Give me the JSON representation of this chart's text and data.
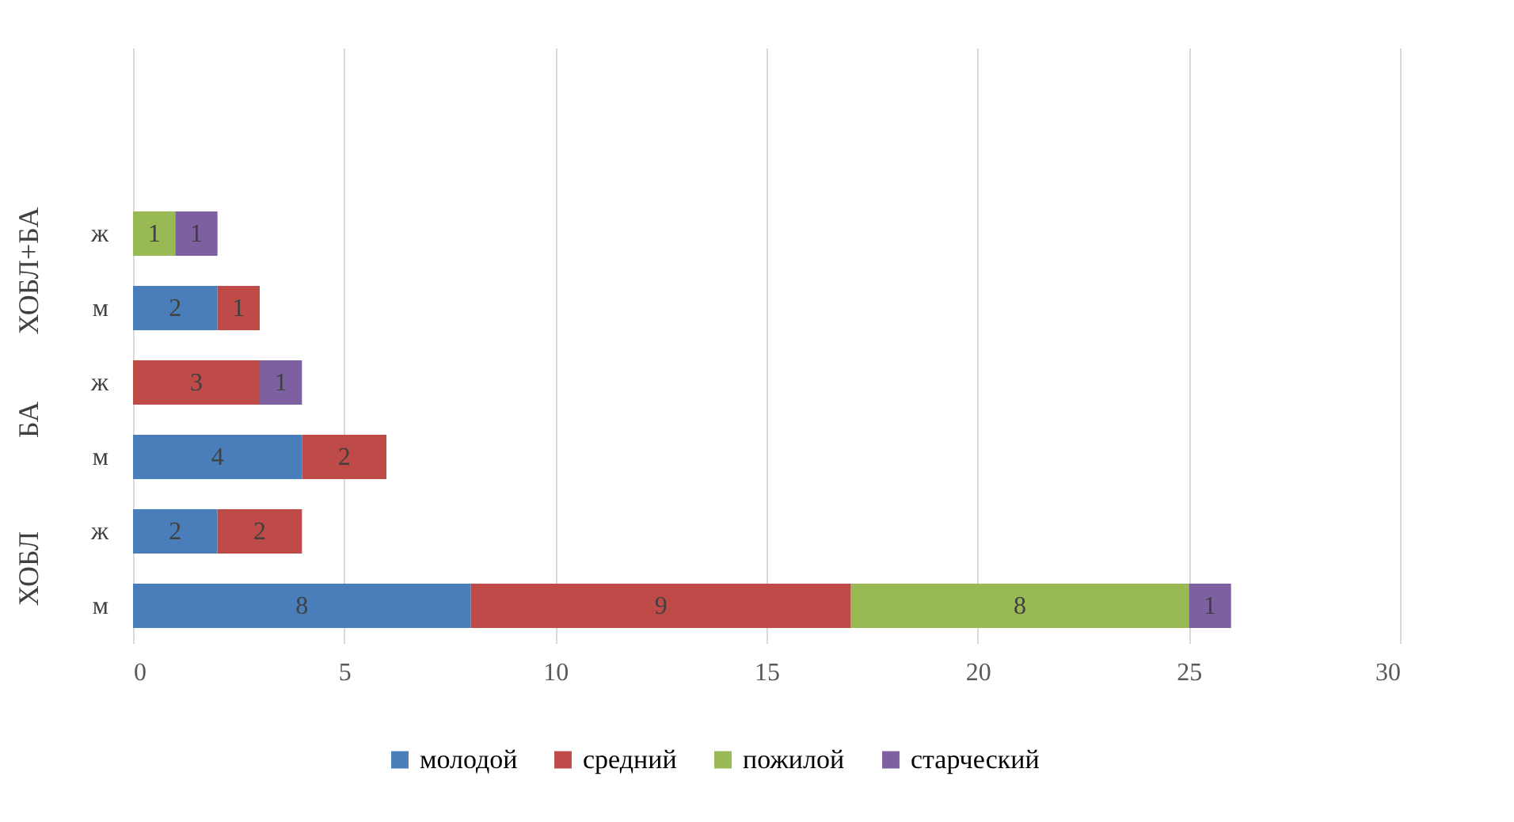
{
  "chart_data": {
    "type": "bar",
    "orientation": "horizontal",
    "stacked": true,
    "data_labels": true,
    "categories": [
      null,
      null,
      "ж",
      "м",
      "ж",
      "м",
      "ж",
      "м"
    ],
    "annotations": [
      "ХОБЛ+БА",
      "БА",
      "ХОБЛ"
    ],
    "series": [
      {
        "name": "молодой",
        "color": "#4a7ebb",
        "values": [
          null,
          null,
          null,
          2,
          null,
          4,
          2,
          8
        ]
      },
      {
        "name": "средний",
        "color": "#be4b48",
        "values": [
          null,
          null,
          null,
          1,
          3,
          2,
          2,
          9
        ]
      },
      {
        "name": "пожилой",
        "color": "#98b954",
        "values": [
          null,
          null,
          1,
          null,
          null,
          null,
          null,
          8
        ]
      },
      {
        "name": "старческий",
        "color": "#7d60a0",
        "values": [
          null,
          null,
          1,
          null,
          1,
          null,
          null,
          1
        ]
      }
    ],
    "xlim": [
      0,
      30
    ],
    "xticks": [
      0,
      5,
      10,
      15,
      20,
      25,
      30
    ],
    "grid": "x",
    "legend": "bottom"
  }
}
